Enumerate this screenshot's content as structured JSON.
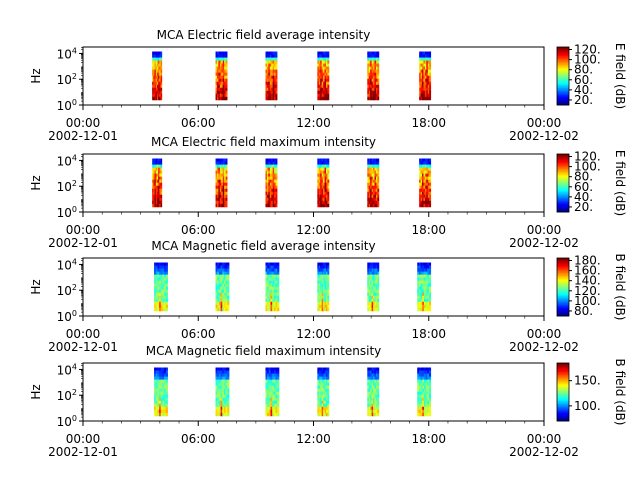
{
  "chart_data": [
    {
      "type": "heatmap",
      "title": "MCA  Electric field average intensity",
      "ylabel": "Hz",
      "colorbar_label": "E field (dB)",
      "colorbar_ticks": [
        20,
        40,
        60,
        80,
        100,
        120
      ],
      "colorbar_range": [
        10,
        125
      ],
      "colormap": "jet",
      "ylim_exponent": [
        0,
        4.5
      ],
      "y_ticks": [
        {
          "base": "10",
          "exp": "0"
        },
        {
          "base": "10",
          "exp": "2"
        },
        {
          "base": "10",
          "exp": "4"
        }
      ],
      "x_ticks": [
        {
          "time": "00:00",
          "date": "2002-12-01"
        },
        {
          "time": "06:00",
          "date": ""
        },
        {
          "time": "12:00",
          "date": ""
        },
        {
          "time": "18:00",
          "date": ""
        },
        {
          "time": "00:00",
          "date": "2002-12-02"
        }
      ],
      "xlim_hours": [
        0,
        24
      ],
      "data_intervals_hours": [
        [
          3.6,
          4.1
        ],
        [
          6.9,
          7.5
        ],
        [
          9.5,
          10.1
        ],
        [
          12.2,
          12.8
        ],
        [
          14.8,
          15.4
        ],
        [
          17.5,
          18.1
        ]
      ],
      "intensity_profile": "high"
    },
    {
      "type": "heatmap",
      "title": "MCA  Electric field maximum intensity",
      "ylabel": "Hz",
      "colorbar_label": "E field (dB)",
      "colorbar_ticks": [
        20,
        40,
        60,
        80,
        100,
        120
      ],
      "colorbar_range": [
        10,
        125
      ],
      "colormap": "jet",
      "ylim_exponent": [
        0,
        4.5
      ],
      "y_ticks": [
        {
          "base": "10",
          "exp": "0"
        },
        {
          "base": "10",
          "exp": "2"
        },
        {
          "base": "10",
          "exp": "4"
        }
      ],
      "x_ticks": [
        {
          "time": "00:00",
          "date": "2002-12-01"
        },
        {
          "time": "06:00",
          "date": ""
        },
        {
          "time": "12:00",
          "date": ""
        },
        {
          "time": "18:00",
          "date": ""
        },
        {
          "time": "00:00",
          "date": "2002-12-02"
        }
      ],
      "xlim_hours": [
        0,
        24
      ],
      "data_intervals_hours": [
        [
          3.6,
          4.1
        ],
        [
          6.9,
          7.5
        ],
        [
          9.5,
          10.1
        ],
        [
          12.2,
          12.8
        ],
        [
          14.8,
          15.4
        ],
        [
          17.5,
          18.1
        ]
      ],
      "intensity_profile": "high"
    },
    {
      "type": "heatmap",
      "title": "MCA  Magnetic field average intensity",
      "ylabel": "Hz",
      "colorbar_label": "B field (dB)",
      "colorbar_ticks": [
        80,
        100,
        120,
        140,
        160,
        180
      ],
      "colorbar_range": [
        70,
        185
      ],
      "colormap": "jet",
      "ylim_exponent": [
        0,
        4.5
      ],
      "y_ticks": [
        {
          "base": "10",
          "exp": "0"
        },
        {
          "base": "10",
          "exp": "2"
        },
        {
          "base": "10",
          "exp": "4"
        }
      ],
      "x_ticks": [
        {
          "time": "00:00",
          "date": "2002-12-01"
        },
        {
          "time": "06:00",
          "date": ""
        },
        {
          "time": "12:00",
          "date": ""
        },
        {
          "time": "18:00",
          "date": ""
        },
        {
          "time": "00:00",
          "date": "2002-12-02"
        }
      ],
      "xlim_hours": [
        0,
        24
      ],
      "data_intervals_hours": [
        [
          3.7,
          4.4
        ],
        [
          6.9,
          7.6
        ],
        [
          9.5,
          10.2
        ],
        [
          12.2,
          12.8
        ],
        [
          14.8,
          15.4
        ],
        [
          17.4,
          18.1
        ]
      ],
      "intensity_profile": "magnetic"
    },
    {
      "type": "heatmap",
      "title": "MCA  Magnetic field maximum intensity",
      "ylabel": "Hz",
      "colorbar_label": "B field (dB)",
      "colorbar_ticks": [
        100,
        150
      ],
      "colorbar_range": [
        70,
        185
      ],
      "colormap": "jet",
      "ylim_exponent": [
        0,
        4.5
      ],
      "y_ticks": [
        {
          "base": "10",
          "exp": "0"
        },
        {
          "base": "10",
          "exp": "2"
        },
        {
          "base": "10",
          "exp": "4"
        }
      ],
      "x_ticks": [
        {
          "time": "00:00",
          "date": "2002-12-01"
        },
        {
          "time": "06:00",
          "date": ""
        },
        {
          "time": "12:00",
          "date": ""
        },
        {
          "time": "18:00",
          "date": ""
        },
        {
          "time": "00:00",
          "date": "2002-12-02"
        }
      ],
      "xlim_hours": [
        0,
        24
      ],
      "data_intervals_hours": [
        [
          3.7,
          4.4
        ],
        [
          6.9,
          7.6
        ],
        [
          9.5,
          10.2
        ],
        [
          12.2,
          12.8
        ],
        [
          14.8,
          15.4
        ],
        [
          17.4,
          18.1
        ]
      ],
      "intensity_profile": "magnetic"
    }
  ]
}
